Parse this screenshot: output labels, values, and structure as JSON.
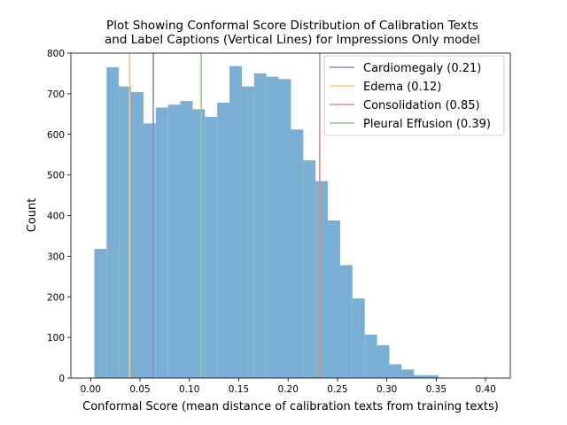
{
  "chart_data": {
    "type": "bar",
    "title_lines": [
      "Plot Showing Conformal Score Distribution of Calibration Texts",
      "and Label Captions (Vertical Lines) for Impressions Only model"
    ],
    "xlabel": "Conformal Score (mean distance of calibration texts from training texts)",
    "ylabel": "Count",
    "xlim": [
      -0.02,
      0.425
    ],
    "ylim": [
      0,
      800
    ],
    "xticks": [
      0.0,
      0.05,
      0.1,
      0.15,
      0.2,
      0.25,
      0.3,
      0.35,
      0.4
    ],
    "xtick_labels": [
      "0.00",
      "0.05",
      "0.10",
      "0.15",
      "0.20",
      "0.25",
      "0.30",
      "0.35",
      "0.40"
    ],
    "yticks": [
      0,
      100,
      200,
      300,
      400,
      500,
      600,
      700,
      800
    ],
    "ytick_labels": [
      "0",
      "100",
      "200",
      "300",
      "400",
      "500",
      "600",
      "700",
      "800"
    ],
    "bar_color": "#7aafd3",
    "bins": {
      "start": 0.0037,
      "width": 0.01245,
      "counts": [
        318,
        765,
        718,
        704,
        627,
        666,
        673,
        682,
        662,
        643,
        678,
        768,
        718,
        750,
        742,
        736,
        612,
        536,
        485,
        388,
        278,
        196,
        107,
        81,
        34,
        21,
        7,
        7
      ]
    },
    "vlines": [
      {
        "name": "Cardiomegaly (0.21)",
        "x": 0.0635,
        "color": "#9186d2"
      },
      {
        "name": "Edema (0.12)",
        "x": 0.0395,
        "color": "#f5c890"
      },
      {
        "name": "Consolidation (0.85)",
        "x": 0.232,
        "color": "#e08a8a"
      },
      {
        "name": "Pleural Effusion (0.39)",
        "x": 0.112,
        "color": "#8fca8f"
      }
    ],
    "legend_position": "upper right",
    "grid": false
  }
}
